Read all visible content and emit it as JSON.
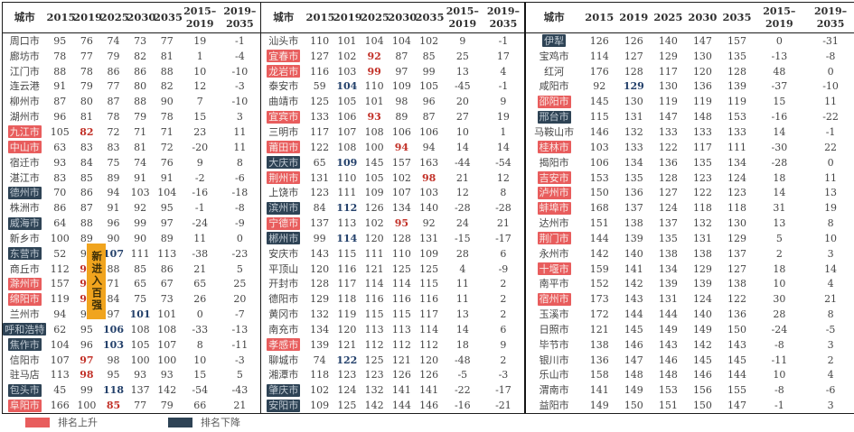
{
  "columns": {
    "city": "城市",
    "years": [
      "2015",
      "2019",
      "2025",
      "2030",
      "2035"
    ],
    "diffs": [
      [
        "2015–",
        "2019"
      ],
      [
        "2019–",
        "2035"
      ]
    ]
  },
  "tables": [
    {
      "rows": [
        {
          "city": "周口市",
          "v": [
            "95",
            "76",
            "74",
            "73",
            "77",
            "19",
            "-1"
          ]
        },
        {
          "city": "廊坊市",
          "v": [
            "78",
            "77",
            "79",
            "82",
            "81",
            "1",
            "-4"
          ]
        },
        {
          "city": "江门市",
          "v": [
            "88",
            "78",
            "86",
            "86",
            "88",
            "10",
            "-10"
          ]
        },
        {
          "city": "连云港",
          "v": [
            "91",
            "79",
            "77",
            "80",
            "82",
            "12",
            "-3"
          ]
        },
        {
          "city": "柳州市",
          "v": [
            "87",
            "80",
            "87",
            "88",
            "90",
            "7",
            "-10"
          ]
        },
        {
          "city": "湖州市",
          "v": [
            "96",
            "81",
            "78",
            "79",
            "78",
            "15",
            "3"
          ]
        },
        {
          "city": "九江市",
          "hl": "up",
          "v": [
            "105",
            "82",
            "72",
            "71",
            "71",
            "23",
            "11"
          ],
          "m": {
            "1": "red"
          }
        },
        {
          "city": "中山市",
          "hl": "up",
          "v": [
            "63",
            "83",
            "83",
            "81",
            "72",
            "-20",
            "11"
          ]
        },
        {
          "city": "宿迁市",
          "v": [
            "93",
            "84",
            "75",
            "74",
            "76",
            "9",
            "8"
          ]
        },
        {
          "city": "湛江市",
          "v": [
            "83",
            "85",
            "89",
            "91",
            "91",
            "-2",
            "-6"
          ]
        },
        {
          "city": "德州市",
          "hl": "down",
          "v": [
            "70",
            "86",
            "94",
            "103",
            "104",
            "-16",
            "-18"
          ]
        },
        {
          "city": "株洲市",
          "v": [
            "86",
            "87",
            "91",
            "92",
            "95",
            "-1",
            "-8"
          ]
        },
        {
          "city": "威海市",
          "hl": "down",
          "v": [
            "64",
            "88",
            "96",
            "99",
            "97",
            "-24",
            "-9"
          ]
        },
        {
          "city": "新乡市",
          "v": [
            "100",
            "89",
            "90",
            "90",
            "89",
            "11",
            "0"
          ]
        },
        {
          "city": "东营市",
          "hl": "down",
          "v": [
            "52",
            "90",
            "107",
            "111",
            "113",
            "-38",
            "-23"
          ],
          "m": {
            "2": "blue"
          }
        },
        {
          "city": "商丘市",
          "v": [
            "112",
            "91",
            "88",
            "85",
            "86",
            "21",
            "5"
          ],
          "m": {
            "1": "red"
          }
        },
        {
          "city": "滁州市",
          "hl": "up",
          "v": [
            "157",
            "92",
            "71",
            "65",
            "67",
            "65",
            "25"
          ],
          "m": {
            "1": "red"
          }
        },
        {
          "city": "绵阳市",
          "hl": "up",
          "v": [
            "119",
            "93",
            "84",
            "75",
            "73",
            "26",
            "20"
          ],
          "m": {
            "1": "red"
          }
        },
        {
          "city": "兰州市",
          "v": [
            "94",
            "94",
            "97",
            "101",
            "101",
            "0",
            "-7"
          ],
          "m": {
            "3": "blue"
          }
        },
        {
          "city": "呼和浩特",
          "hl": "down",
          "v": [
            "62",
            "95",
            "106",
            "108",
            "108",
            "-33",
            "-13"
          ],
          "m": {
            "2": "blue"
          }
        },
        {
          "city": "焦作市",
          "hl": "down",
          "v": [
            "104",
            "96",
            "103",
            "105",
            "107",
            "8",
            "-11"
          ],
          "m": {
            "2": "blue"
          }
        },
        {
          "city": "信阳市",
          "v": [
            "107",
            "97",
            "98",
            "100",
            "100",
            "10",
            "-3"
          ],
          "m": {
            "1": "red"
          }
        },
        {
          "city": "驻马店",
          "v": [
            "113",
            "98",
            "95",
            "93",
            "93",
            "15",
            "5"
          ],
          "m": {
            "1": "red"
          }
        },
        {
          "city": "包头市",
          "hl": "down",
          "v": [
            "45",
            "99",
            "118",
            "137",
            "142",
            "-54",
            "-43"
          ],
          "m": {
            "2": "blue"
          }
        },
        {
          "city": "阜阳市",
          "hl": "up",
          "v": [
            "166",
            "100",
            "85",
            "77",
            "79",
            "66",
            "21"
          ],
          "m": {
            "2": "red"
          }
        }
      ]
    },
    {
      "rows": [
        {
          "city": "汕头市",
          "v": [
            "110",
            "101",
            "104",
            "104",
            "102",
            "9",
            "-1"
          ]
        },
        {
          "city": "宜春市",
          "hl": "up",
          "v": [
            "127",
            "102",
            "92",
            "87",
            "85",
            "25",
            "17"
          ],
          "m": {
            "2": "red"
          }
        },
        {
          "city": "龙岩市",
          "hl": "up",
          "v": [
            "116",
            "103",
            "99",
            "97",
            "99",
            "13",
            "4"
          ],
          "m": {
            "2": "red"
          }
        },
        {
          "city": "泰安市",
          "v": [
            "59",
            "104",
            "110",
            "109",
            "105",
            "-45",
            "-1"
          ],
          "m": {
            "1": "blue"
          }
        },
        {
          "city": "曲靖市",
          "v": [
            "125",
            "105",
            "101",
            "98",
            "96",
            "20",
            "9"
          ]
        },
        {
          "city": "宜宾市",
          "hl": "up",
          "v": [
            "133",
            "106",
            "93",
            "89",
            "87",
            "27",
            "19"
          ],
          "m": {
            "2": "red"
          }
        },
        {
          "city": "三明市",
          "v": [
            "117",
            "107",
            "108",
            "106",
            "106",
            "10",
            "1"
          ]
        },
        {
          "city": "莆田市",
          "hl": "up",
          "v": [
            "122",
            "108",
            "100",
            "94",
            "94",
            "14",
            "14"
          ],
          "m": {
            "3": "red"
          }
        },
        {
          "city": "大庆市",
          "hl": "down",
          "v": [
            "65",
            "109",
            "145",
            "157",
            "163",
            "-44",
            "-54"
          ],
          "m": {
            "1": "blue"
          }
        },
        {
          "city": "荆州市",
          "hl": "up",
          "v": [
            "131",
            "110",
            "105",
            "102",
            "98",
            "21",
            "12"
          ],
          "m": {
            "4": "red"
          }
        },
        {
          "city": "上饶市",
          "v": [
            "123",
            "111",
            "109",
            "107",
            "103",
            "12",
            "8"
          ]
        },
        {
          "city": "滨州市",
          "hl": "down",
          "v": [
            "84",
            "112",
            "126",
            "134",
            "140",
            "-28",
            "-28"
          ],
          "m": {
            "1": "blue"
          }
        },
        {
          "city": "宁德市",
          "hl": "up",
          "v": [
            "137",
            "113",
            "102",
            "95",
            "92",
            "24",
            "21"
          ],
          "m": {
            "3": "red"
          }
        },
        {
          "city": "郴州市",
          "hl": "down",
          "v": [
            "99",
            "114",
            "120",
            "128",
            "131",
            "-15",
            "-17"
          ],
          "m": {
            "1": "blue"
          }
        },
        {
          "city": "安庆市",
          "v": [
            "143",
            "115",
            "111",
            "110",
            "109",
            "28",
            "6"
          ]
        },
        {
          "city": "平顶山",
          "v": [
            "120",
            "116",
            "121",
            "125",
            "125",
            "4",
            "-9"
          ]
        },
        {
          "city": "开封市",
          "v": [
            "128",
            "117",
            "114",
            "114",
            "115",
            "11",
            "2"
          ]
        },
        {
          "city": "德阳市",
          "v": [
            "129",
            "118",
            "116",
            "116",
            "116",
            "11",
            "2"
          ]
        },
        {
          "city": "黄冈市",
          "v": [
            "132",
            "119",
            "115",
            "115",
            "117",
            "13",
            "2"
          ]
        },
        {
          "city": "南充市",
          "v": [
            "134",
            "120",
            "113",
            "113",
            "114",
            "14",
            "6"
          ]
        },
        {
          "city": "孝感市",
          "hl": "up",
          "v": [
            "139",
            "121",
            "112",
            "112",
            "112",
            "18",
            "9"
          ]
        },
        {
          "city": "聊城市",
          "v": [
            "74",
            "122",
            "125",
            "121",
            "120",
            "-48",
            "2"
          ],
          "m": {
            "1": "blue"
          }
        },
        {
          "city": "湘潭市",
          "v": [
            "118",
            "123",
            "123",
            "126",
            "126",
            "-5",
            "-3"
          ]
        },
        {
          "city": "肇庆市",
          "hl": "down",
          "v": [
            "102",
            "124",
            "132",
            "141",
            "141",
            "-22",
            "-17"
          ]
        },
        {
          "city": "安阳市",
          "hl": "down",
          "v": [
            "109",
            "125",
            "142",
            "144",
            "146",
            "-16",
            "-21"
          ]
        }
      ]
    },
    {
      "rows": [
        {
          "city": "伊犁",
          "hl": "down",
          "v": [
            "126",
            "126",
            "140",
            "147",
            "157",
            "0",
            "-31"
          ]
        },
        {
          "city": "宝鸡市",
          "v": [
            "114",
            "127",
            "129",
            "130",
            "135",
            "-13",
            "-8"
          ]
        },
        {
          "city": "红河",
          "v": [
            "176",
            "128",
            "117",
            "120",
            "128",
            "48",
            "0"
          ]
        },
        {
          "city": "咸阳市",
          "v": [
            "92",
            "129",
            "130",
            "136",
            "139",
            "-37",
            "-10"
          ],
          "m": {
            "1": "blue"
          }
        },
        {
          "city": "邵阳市",
          "hl": "up",
          "v": [
            "145",
            "130",
            "119",
            "119",
            "119",
            "15",
            "11"
          ]
        },
        {
          "city": "邢台市",
          "hl": "down",
          "v": [
            "115",
            "131",
            "147",
            "148",
            "153",
            "-16",
            "-22"
          ]
        },
        {
          "city": "马鞍山市",
          "v": [
            "146",
            "132",
            "133",
            "133",
            "133",
            "14",
            "-1"
          ]
        },
        {
          "city": "桂林市",
          "hl": "up",
          "v": [
            "103",
            "133",
            "122",
            "117",
            "111",
            "-30",
            "22"
          ]
        },
        {
          "city": "揭阳市",
          "v": [
            "106",
            "134",
            "136",
            "135",
            "134",
            "-28",
            "0"
          ]
        },
        {
          "city": "吉安市",
          "hl": "up",
          "v": [
            "153",
            "135",
            "128",
            "123",
            "124",
            "18",
            "11"
          ]
        },
        {
          "city": "泸州市",
          "hl": "up",
          "v": [
            "150",
            "136",
            "127",
            "122",
            "123",
            "14",
            "13"
          ]
        },
        {
          "city": "蚌埠市",
          "hl": "up",
          "v": [
            "168",
            "137",
            "124",
            "118",
            "118",
            "31",
            "19"
          ]
        },
        {
          "city": "达州市",
          "v": [
            "151",
            "138",
            "137",
            "132",
            "130",
            "13",
            "8"
          ]
        },
        {
          "city": "荆门市",
          "hl": "up",
          "v": [
            "144",
            "139",
            "135",
            "131",
            "129",
            "5",
            "10"
          ]
        },
        {
          "city": "永州市",
          "v": [
            "142",
            "140",
            "138",
            "138",
            "137",
            "2",
            "3"
          ]
        },
        {
          "city": "十堰市",
          "hl": "up",
          "v": [
            "159",
            "141",
            "134",
            "129",
            "127",
            "18",
            "14"
          ]
        },
        {
          "city": "南平市",
          "v": [
            "152",
            "142",
            "139",
            "139",
            "138",
            "10",
            "4"
          ]
        },
        {
          "city": "宿州市",
          "hl": "up",
          "v": [
            "173",
            "143",
            "131",
            "124",
            "122",
            "30",
            "21"
          ]
        },
        {
          "city": "玉溪市",
          "v": [
            "172",
            "144",
            "144",
            "140",
            "136",
            "28",
            "8"
          ]
        },
        {
          "city": "日照市",
          "v": [
            "121",
            "145",
            "149",
            "149",
            "150",
            "-24",
            "-5"
          ]
        },
        {
          "city": "毕节市",
          "v": [
            "138",
            "146",
            "143",
            "142",
            "143",
            "-8",
            "3"
          ]
        },
        {
          "city": "银川市",
          "v": [
            "136",
            "147",
            "146",
            "145",
            "145",
            "-11",
            "2"
          ]
        },
        {
          "city": "乐山市",
          "v": [
            "158",
            "148",
            "148",
            "146",
            "144",
            "10",
            "4"
          ]
        },
        {
          "city": "渭南市",
          "v": [
            "141",
            "149",
            "153",
            "156",
            "155",
            "-8",
            "-6"
          ]
        },
        {
          "city": "益阳市",
          "v": [
            "149",
            "150",
            "151",
            "150",
            "147",
            "-1",
            "3"
          ]
        }
      ]
    }
  ],
  "badge": {
    "text": "新进入百强",
    "color": "#F0A41E",
    "text_color": "#3D2F08"
  },
  "legend": [
    {
      "label": "排名上升",
      "color": "#E85D5D"
    },
    {
      "label": "排名下降",
      "color": "#2E4355"
    }
  ],
  "colors": {
    "mark_up_text": "#C23128",
    "mark_down_text": "#24416B",
    "highlight_up_bg": "#E85D5D",
    "highlight_down_bg": "#2E4355",
    "border": "#1C1C1C"
  }
}
